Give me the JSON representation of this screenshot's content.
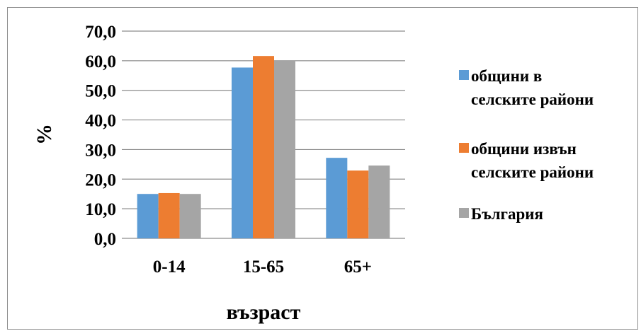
{
  "chart_data": {
    "type": "bar",
    "title": "",
    "xlabel": "възраст",
    "ylabel": "%",
    "categories": [
      "0-14",
      "15-65",
      "65+"
    ],
    "series": [
      {
        "name": "общини в селските райони",
        "legend_lines": [
          "общини в",
          "селските райони"
        ],
        "color": "#5b9bd5",
        "values": [
          15.0,
          57.7,
          27.2
        ]
      },
      {
        "name": "общини извън селските райони",
        "legend_lines": [
          "общини извън",
          "селските райони"
        ],
        "color": "#ed7d31",
        "values": [
          15.3,
          61.6,
          22.9
        ]
      },
      {
        "name": "България",
        "legend_lines": [
          "България"
        ],
        "color": "#a5a5a5",
        "values": [
          15.0,
          60.0,
          24.6
        ]
      }
    ],
    "ylim": [
      0,
      70
    ],
    "yticks": [
      "0,0",
      "10,0",
      "20,0",
      "30,0",
      "40,0",
      "50,0",
      "60,0",
      "70,0"
    ],
    "grid": true,
    "legend_position": "right"
  }
}
